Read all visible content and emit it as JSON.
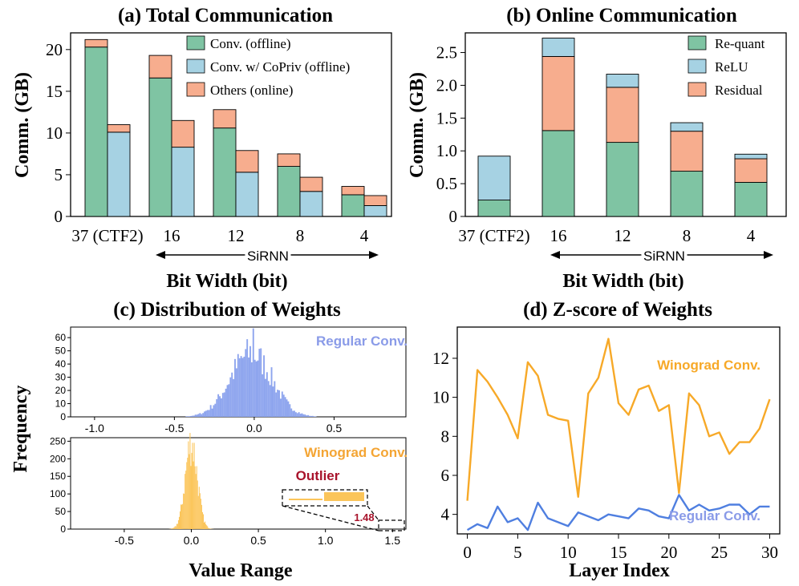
{
  "chart_data": [
    {
      "id": "a",
      "type": "bar",
      "stacked": true,
      "title": "(a) Total Communication",
      "xlabel": "Bit Width (bit)",
      "ylabel": "Comm. (GB)",
      "ylim": [
        0,
        22
      ],
      "yticks": [
        0,
        5,
        10,
        15,
        20
      ],
      "categories": [
        "37 (CTF2)",
        "16",
        "12",
        "8",
        "4"
      ],
      "span_label": "SiRNN",
      "legend_position": "top-right",
      "bar_groups": [
        {
          "category": "37 (CTF2)",
          "bars": [
            {
              "label": "Conv.",
              "segments": [
                {
                  "series": "Conv. (offline)",
                  "value": 20.3
                },
                {
                  "series": "Others (online)",
                  "value": 0.9
                }
              ]
            },
            {
              "label": "CoPriv",
              "segments": [
                {
                  "series": "Conv. w/ CoPriv (offline)",
                  "value": 10.1
                },
                {
                  "series": "Others (online)",
                  "value": 0.9
                }
              ]
            }
          ]
        },
        {
          "category": "16",
          "bars": [
            {
              "label": "Conv.",
              "segments": [
                {
                  "series": "Conv. (offline)",
                  "value": 16.6
                },
                {
                  "series": "Others (online)",
                  "value": 2.7
                }
              ]
            },
            {
              "label": "CoPriv",
              "segments": [
                {
                  "series": "Conv. w/ CoPriv (offline)",
                  "value": 8.3
                },
                {
                  "series": "Others (online)",
                  "value": 3.2
                }
              ]
            }
          ]
        },
        {
          "category": "12",
          "bars": [
            {
              "label": "Conv.",
              "segments": [
                {
                  "series": "Conv. (offline)",
                  "value": 10.6
                },
                {
                  "series": "Others (online)",
                  "value": 2.2
                }
              ]
            },
            {
              "label": "CoPriv",
              "segments": [
                {
                  "series": "Conv. w/ CoPriv (offline)",
                  "value": 5.3
                },
                {
                  "series": "Others (online)",
                  "value": 2.6
                }
              ]
            }
          ]
        },
        {
          "category": "8",
          "bars": [
            {
              "label": "Conv.",
              "segments": [
                {
                  "series": "Conv. (offline)",
                  "value": 6.0
                },
                {
                  "series": "Others (online)",
                  "value": 1.5
                }
              ]
            },
            {
              "label": "CoPriv",
              "segments": [
                {
                  "series": "Conv. w/ CoPriv (offline)",
                  "value": 3.0
                },
                {
                  "series": "Others (online)",
                  "value": 1.7
                }
              ]
            }
          ]
        },
        {
          "category": "4",
          "bars": [
            {
              "label": "Conv.",
              "segments": [
                {
                  "series": "Conv. (offline)",
                  "value": 2.6
                },
                {
                  "series": "Others (online)",
                  "value": 1.0
                }
              ]
            },
            {
              "label": "CoPriv",
              "segments": [
                {
                  "series": "Conv. w/ CoPriv (offline)",
                  "value": 1.3
                },
                {
                  "series": "Others (online)",
                  "value": 1.2
                }
              ]
            }
          ]
        }
      ],
      "legend": [
        {
          "name": "Conv. (offline)",
          "color": "#7fc4a3"
        },
        {
          "name": "Conv. w/ CoPriv (offline)",
          "color": "#a6d2e3"
        },
        {
          "name": "Others (online)",
          "color": "#f7ad8e"
        }
      ]
    },
    {
      "id": "b",
      "type": "bar",
      "stacked": true,
      "title": "(b) Online Communication",
      "xlabel": "Bit Width (bit)",
      "ylabel": "Comm. (GB)",
      "ylim": [
        0,
        2.8
      ],
      "yticks": [
        "0",
        "0.5",
        "1.0",
        "1.5",
        "2.0",
        "2.5"
      ],
      "categories": [
        "37 (CTF2)",
        "16",
        "12",
        "8",
        "4"
      ],
      "span_label": "SiRNN",
      "legend_position": "top-right",
      "series": [
        {
          "name": "Re-quant",
          "color": "#7fc4a3",
          "values": [
            0.25,
            1.31,
            1.13,
            0.69,
            0.52
          ]
        },
        {
          "name": "Residual",
          "color": "#f7ad8e",
          "values": [
            0.0,
            1.13,
            0.84,
            0.61,
            0.36
          ]
        },
        {
          "name": "ReLU",
          "color": "#a6d2e3",
          "values": [
            0.67,
            0.28,
            0.2,
            0.13,
            0.07
          ]
        }
      ],
      "legend": [
        {
          "name": "Re-quant",
          "color": "#7fc4a3"
        },
        {
          "name": "ReLU",
          "color": "#a6d2e3"
        },
        {
          "name": "Residual",
          "color": "#f7ad8e"
        }
      ]
    },
    {
      "id": "c",
      "type": "histogram",
      "title": "(c) Distribution of  Weights",
      "xlabel": "Value Range",
      "ylabel": "Frequency",
      "panels": [
        {
          "name": "Regular Conv.",
          "color": "#8ea5ee",
          "label_color": "#8a9be8",
          "xlim": [
            -1.15,
            0.95
          ],
          "ylim": [
            0,
            68
          ],
          "xticks": [
            "-1.0",
            "-0.5",
            "0.0",
            "0.5"
          ],
          "yticks": [
            0,
            10,
            20,
            30,
            40,
            50,
            60
          ],
          "center": -0.02,
          "std": 0.13,
          "peak": 48,
          "spike_value": 67,
          "spike_at": -0.01
        },
        {
          "name": "Winograd Conv.",
          "color": "#fbc55a",
          "label_color": "#f4a534",
          "xlim": [
            -0.9,
            1.6
          ],
          "ylim": [
            0,
            260
          ],
          "xticks": [
            "-0.5",
            "0.0",
            "0.5",
            "1.0",
            "1.5"
          ],
          "yticks": [
            0,
            50,
            100,
            150,
            200,
            250
          ],
          "center": 0.0,
          "std": 0.045,
          "peak": 245,
          "outlier_label": "Outlier",
          "outlier_color": "#a8132b",
          "outlier_value_label": "1.48"
        }
      ]
    },
    {
      "id": "d",
      "type": "line",
      "title": "(d) Z-score of Weights",
      "xlabel": "Layer Index",
      "ylabel": "",
      "xlim": [
        -1,
        31
      ],
      "ylim": [
        3,
        13.6
      ],
      "xticks": [
        0,
        5,
        10,
        15,
        20,
        25,
        30
      ],
      "yticks": [
        4,
        6,
        8,
        10,
        12
      ],
      "x": [
        0,
        1,
        2,
        3,
        4,
        5,
        6,
        7,
        8,
        9,
        10,
        11,
        12,
        13,
        14,
        15,
        16,
        17,
        18,
        19,
        20,
        21,
        22,
        23,
        24,
        25,
        26,
        27,
        28,
        29,
        30
      ],
      "series": [
        {
          "name": "Winograd Conv.",
          "color": "#f7a928",
          "values": [
            4.7,
            11.4,
            10.8,
            10.0,
            9.1,
            7.9,
            11.8,
            11.1,
            9.1,
            8.9,
            8.8,
            4.9,
            10.2,
            11.0,
            13.0,
            9.7,
            9.1,
            10.4,
            10.6,
            9.3,
            9.6,
            5.1,
            10.2,
            9.6,
            8.0,
            8.2,
            7.1,
            7.7,
            7.7,
            8.4,
            9.9
          ]
        },
        {
          "name": "Regular Conv.",
          "color": "#4f7fe0",
          "values": [
            3.2,
            3.5,
            3.3,
            4.4,
            3.6,
            3.8,
            3.2,
            4.6,
            3.8,
            3.6,
            3.4,
            4.1,
            3.9,
            3.7,
            4.0,
            3.9,
            3.8,
            4.3,
            4.2,
            3.9,
            3.8,
            5.0,
            4.2,
            4.5,
            4.2,
            4.3,
            4.5,
            4.5,
            4.0,
            4.4,
            4.4
          ]
        }
      ]
    }
  ]
}
